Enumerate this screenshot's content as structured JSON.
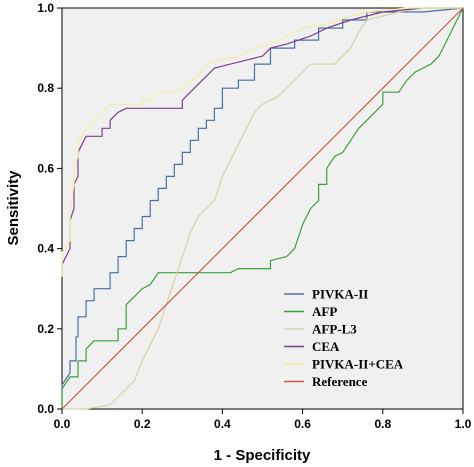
{
  "chart_data": {
    "type": "line",
    "title": "",
    "xlabel": "1 - Specificity",
    "ylabel": "Sensitivity",
    "xlim": [
      0,
      1
    ],
    "ylim": [
      0,
      1
    ],
    "x_ticks": [
      "0.0",
      "0.2",
      "0.4",
      "0.6",
      "0.8",
      "1.0"
    ],
    "y_ticks": [
      "0.0",
      "0.2",
      "0.4",
      "0.6",
      "0.8",
      "1.0"
    ],
    "grid": false,
    "legend_position": "bottom-right",
    "background_color": "#f0f0f0",
    "series": [
      {
        "name": "PIVKA-II",
        "color": "#4a6fa5",
        "points": [
          [
            0,
            0
          ],
          [
            0,
            0.06
          ],
          [
            0.02,
            0.09
          ],
          [
            0.02,
            0.12
          ],
          [
            0.035,
            0.12
          ],
          [
            0.035,
            0.18
          ],
          [
            0.04,
            0.18
          ],
          [
            0.04,
            0.23
          ],
          [
            0.06,
            0.23
          ],
          [
            0.06,
            0.27
          ],
          [
            0.08,
            0.27
          ],
          [
            0.08,
            0.3
          ],
          [
            0.12,
            0.3
          ],
          [
            0.12,
            0.34
          ],
          [
            0.14,
            0.34
          ],
          [
            0.14,
            0.38
          ],
          [
            0.16,
            0.38
          ],
          [
            0.16,
            0.42
          ],
          [
            0.18,
            0.42
          ],
          [
            0.18,
            0.45
          ],
          [
            0.2,
            0.45
          ],
          [
            0.2,
            0.48
          ],
          [
            0.22,
            0.48
          ],
          [
            0.22,
            0.52
          ],
          [
            0.24,
            0.52
          ],
          [
            0.24,
            0.55
          ],
          [
            0.26,
            0.55
          ],
          [
            0.26,
            0.58
          ],
          [
            0.28,
            0.58
          ],
          [
            0.28,
            0.61
          ],
          [
            0.3,
            0.61
          ],
          [
            0.3,
            0.64
          ],
          [
            0.32,
            0.64
          ],
          [
            0.32,
            0.67
          ],
          [
            0.34,
            0.67
          ],
          [
            0.34,
            0.7
          ],
          [
            0.36,
            0.7
          ],
          [
            0.36,
            0.72
          ],
          [
            0.38,
            0.72
          ],
          [
            0.38,
            0.75
          ],
          [
            0.4,
            0.75
          ],
          [
            0.4,
            0.8
          ],
          [
            0.44,
            0.8
          ],
          [
            0.44,
            0.82
          ],
          [
            0.48,
            0.82
          ],
          [
            0.48,
            0.86
          ],
          [
            0.52,
            0.86
          ],
          [
            0.52,
            0.9
          ],
          [
            0.58,
            0.9
          ],
          [
            0.58,
            0.92
          ],
          [
            0.64,
            0.92
          ],
          [
            0.64,
            0.95
          ],
          [
            0.7,
            0.95
          ],
          [
            0.7,
            0.97
          ],
          [
            0.76,
            0.97
          ],
          [
            0.76,
            0.99
          ],
          [
            0.9,
            0.99
          ],
          [
            1,
            1
          ]
        ]
      },
      {
        "name": "AFP",
        "color": "#3aa03a",
        "points": [
          [
            0,
            0
          ],
          [
            0,
            0.05
          ],
          [
            0.02,
            0.08
          ],
          [
            0.04,
            0.08
          ],
          [
            0.04,
            0.12
          ],
          [
            0.06,
            0.12
          ],
          [
            0.06,
            0.15
          ],
          [
            0.08,
            0.17
          ],
          [
            0.14,
            0.17
          ],
          [
            0.14,
            0.2
          ],
          [
            0.16,
            0.2
          ],
          [
            0.16,
            0.26
          ],
          [
            0.18,
            0.28
          ],
          [
            0.2,
            0.3
          ],
          [
            0.22,
            0.31
          ],
          [
            0.24,
            0.34
          ],
          [
            0.42,
            0.34
          ],
          [
            0.44,
            0.35
          ],
          [
            0.52,
            0.35
          ],
          [
            0.52,
            0.37
          ],
          [
            0.56,
            0.38
          ],
          [
            0.58,
            0.4
          ],
          [
            0.6,
            0.46
          ],
          [
            0.62,
            0.5
          ],
          [
            0.64,
            0.52
          ],
          [
            0.64,
            0.56
          ],
          [
            0.66,
            0.56
          ],
          [
            0.66,
            0.6
          ],
          [
            0.68,
            0.63
          ],
          [
            0.7,
            0.64
          ],
          [
            0.72,
            0.67
          ],
          [
            0.74,
            0.7
          ],
          [
            0.76,
            0.72
          ],
          [
            0.78,
            0.74
          ],
          [
            0.8,
            0.76
          ],
          [
            0.8,
            0.79
          ],
          [
            0.84,
            0.79
          ],
          [
            0.86,
            0.82
          ],
          [
            0.88,
            0.84
          ],
          [
            0.92,
            0.86
          ],
          [
            0.94,
            0.88
          ],
          [
            0.96,
            0.92
          ],
          [
            0.98,
            0.96
          ],
          [
            1,
            1
          ]
        ]
      },
      {
        "name": "AFP-L3",
        "color": "#d3d2a6",
        "points": [
          [
            0,
            0
          ],
          [
            0.06,
            0.0
          ],
          [
            0.12,
            0.01
          ],
          [
            0.14,
            0.03
          ],
          [
            0.16,
            0.05
          ],
          [
            0.18,
            0.07
          ],
          [
            0.2,
            0.12
          ],
          [
            0.22,
            0.16
          ],
          [
            0.24,
            0.2
          ],
          [
            0.26,
            0.26
          ],
          [
            0.28,
            0.32
          ],
          [
            0.3,
            0.38
          ],
          [
            0.32,
            0.44
          ],
          [
            0.34,
            0.48
          ],
          [
            0.36,
            0.5
          ],
          [
            0.38,
            0.52
          ],
          [
            0.4,
            0.58
          ],
          [
            0.42,
            0.62
          ],
          [
            0.44,
            0.66
          ],
          [
            0.46,
            0.7
          ],
          [
            0.48,
            0.74
          ],
          [
            0.5,
            0.76
          ],
          [
            0.54,
            0.78
          ],
          [
            0.56,
            0.8
          ],
          [
            0.58,
            0.82
          ],
          [
            0.6,
            0.84
          ],
          [
            0.62,
            0.86
          ],
          [
            0.68,
            0.86
          ],
          [
            0.72,
            0.9
          ],
          [
            0.74,
            0.94
          ],
          [
            0.76,
            0.97
          ],
          [
            0.8,
            0.98
          ],
          [
            0.84,
            0.99
          ],
          [
            0.9,
            1
          ],
          [
            1,
            1
          ]
        ]
      },
      {
        "name": "CEA",
        "color": "#7b3f8e",
        "points": [
          [
            0,
            0.33
          ],
          [
            0,
            0.36
          ],
          [
            0.02,
            0.4
          ],
          [
            0.02,
            0.47
          ],
          [
            0.03,
            0.5
          ],
          [
            0.03,
            0.56
          ],
          [
            0.04,
            0.58
          ],
          [
            0.04,
            0.64
          ],
          [
            0.05,
            0.66
          ],
          [
            0.06,
            0.68
          ],
          [
            0.1,
            0.68
          ],
          [
            0.1,
            0.7
          ],
          [
            0.12,
            0.7
          ],
          [
            0.12,
            0.72
          ],
          [
            0.14,
            0.74
          ],
          [
            0.16,
            0.75
          ],
          [
            0.3,
            0.75
          ],
          [
            0.3,
            0.77
          ],
          [
            0.32,
            0.79
          ],
          [
            0.34,
            0.81
          ],
          [
            0.36,
            0.83
          ],
          [
            0.38,
            0.85
          ],
          [
            0.42,
            0.86
          ],
          [
            0.46,
            0.87
          ],
          [
            0.5,
            0.88
          ],
          [
            0.52,
            0.9
          ],
          [
            0.56,
            0.91
          ],
          [
            0.62,
            0.93
          ],
          [
            0.66,
            0.95
          ],
          [
            0.72,
            0.97
          ],
          [
            0.76,
            0.98
          ],
          [
            0.8,
            0.99
          ],
          [
            0.9,
            1
          ],
          [
            1,
            1
          ]
        ]
      },
      {
        "name": "PIVKA-II+CEA",
        "color": "#f2ee9e",
        "points": [
          [
            0,
            0.33
          ],
          [
            0,
            0.39
          ],
          [
            0.02,
            0.42
          ],
          [
            0.02,
            0.5
          ],
          [
            0.03,
            0.56
          ],
          [
            0.03,
            0.6
          ],
          [
            0.04,
            0.63
          ],
          [
            0.04,
            0.66
          ],
          [
            0.06,
            0.7
          ],
          [
            0.08,
            0.72
          ],
          [
            0.1,
            0.74
          ],
          [
            0.12,
            0.76
          ],
          [
            0.2,
            0.76
          ],
          [
            0.2,
            0.77
          ],
          [
            0.22,
            0.77
          ],
          [
            0.24,
            0.79
          ],
          [
            0.28,
            0.79
          ],
          [
            0.3,
            0.8
          ],
          [
            0.32,
            0.82
          ],
          [
            0.34,
            0.83
          ],
          [
            0.36,
            0.86
          ],
          [
            0.4,
            0.87
          ],
          [
            0.44,
            0.88
          ],
          [
            0.48,
            0.9
          ],
          [
            0.52,
            0.91
          ],
          [
            0.56,
            0.93
          ],
          [
            0.6,
            0.95
          ],
          [
            0.66,
            0.96
          ],
          [
            0.72,
            0.98
          ],
          [
            0.76,
            0.99
          ],
          [
            0.86,
            1
          ],
          [
            1,
            1
          ]
        ]
      },
      {
        "name": "Reference",
        "color": "#cc5a44",
        "points": [
          [
            0,
            0
          ],
          [
            1,
            1
          ]
        ]
      }
    ]
  }
}
